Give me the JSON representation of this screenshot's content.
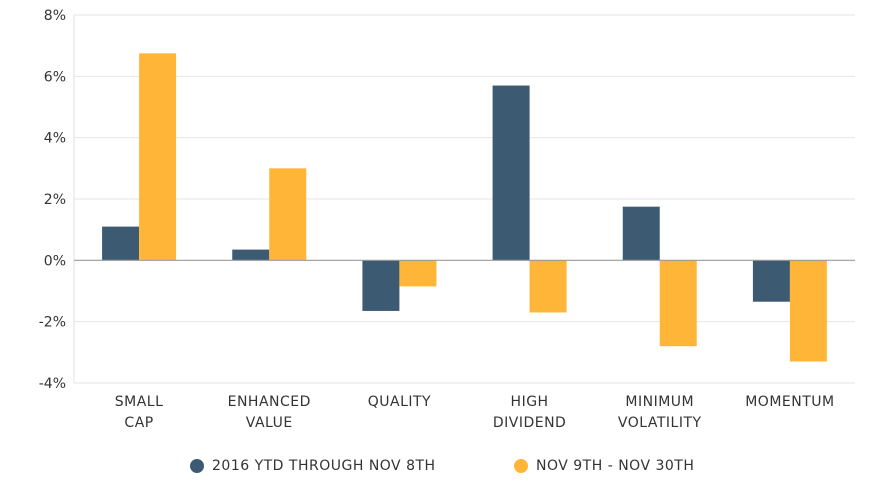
{
  "chart_data": {
    "type": "bar",
    "categories": [
      [
        "SMALL",
        "CAP"
      ],
      [
        "ENHANCED",
        "VALUE"
      ],
      [
        "QUALITY"
      ],
      [
        "HIGH",
        "DIVIDEND"
      ],
      [
        "MINIMUM",
        "VOLATILITY"
      ],
      [
        "MOMENTUM"
      ]
    ],
    "series": [
      {
        "name": "2016 YTD THROUGH NOV 8TH",
        "color": "#3d5a73",
        "values": [
          1.1,
          0.35,
          -1.65,
          5.7,
          1.75,
          -1.35
        ]
      },
      {
        "name": "NOV 9TH - NOV 30TH",
        "color": "#ffb638",
        "values": [
          6.75,
          3.0,
          -0.85,
          -1.7,
          -2.8,
          -3.3
        ]
      }
    ],
    "yticks": [
      "8%",
      "6%",
      "4%",
      "2%",
      "0%",
      "-2%",
      "-4%"
    ],
    "ylim": [
      -4,
      8
    ],
    "grid": true,
    "legend_position": "bottom"
  }
}
